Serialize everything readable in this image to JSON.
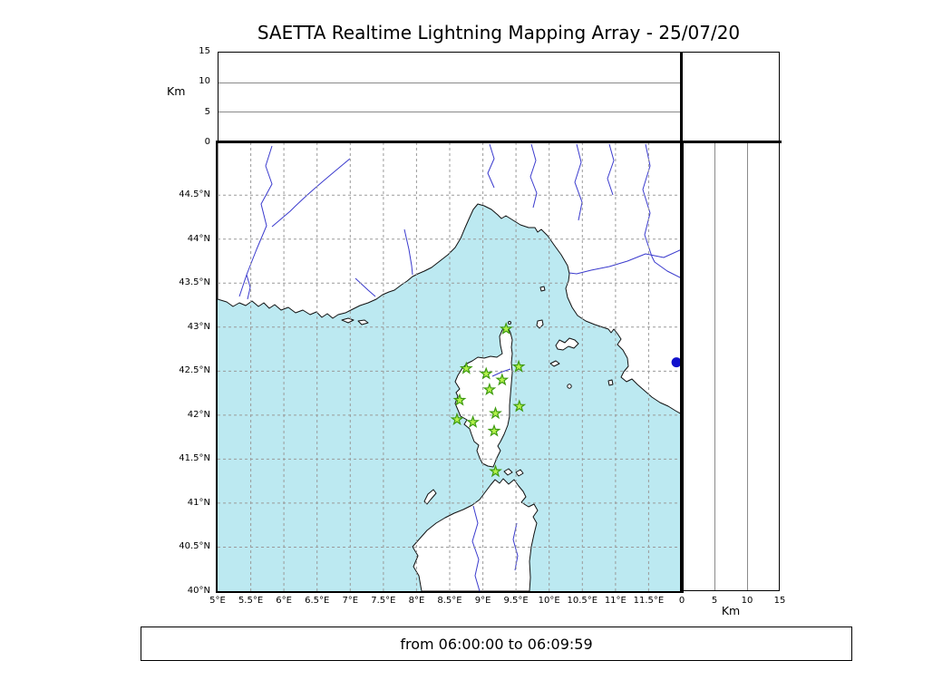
{
  "title": "SAETTA Realtime Lightning Mapping Array - 25/07/20",
  "status_bar": {
    "text": "from 06:00:00 to 06:09:59"
  },
  "colors": {
    "sea": "#bce9f1",
    "land": "#ffffff",
    "coastline": "#111111",
    "river": "#3a3acd",
    "grid": "#9a9a9a",
    "panel_grid": "#8a8a8a",
    "station_fill": "#b5f24c",
    "station_stroke": "#3e9b10",
    "source_point": "#1111cc"
  },
  "altitude_axis": {
    "label": "Km",
    "max_km": 15,
    "ticks": [
      {
        "v": 0,
        "label": "0"
      },
      {
        "v": 5,
        "label": "5"
      },
      {
        "v": 10,
        "label": "10"
      },
      {
        "v": 15,
        "label": "15"
      }
    ],
    "gridlines_km": [
      5,
      10
    ]
  },
  "map_axes": {
    "lon_ticks": [
      {
        "v": 5,
        "label": "5°E"
      },
      {
        "v": 5.5,
        "label": "5.5°E"
      },
      {
        "v": 6,
        "label": "6°E"
      },
      {
        "v": 6.5,
        "label": "6.5°E"
      },
      {
        "v": 7,
        "label": "7°E"
      },
      {
        "v": 7.5,
        "label": "7.5°E"
      },
      {
        "v": 8,
        "label": "8°E"
      },
      {
        "v": 8.5,
        "label": "8.5°E"
      },
      {
        "v": 9,
        "label": "9°E"
      },
      {
        "v": 9.5,
        "label": "9.5°E"
      },
      {
        "v": 10,
        "label": "10°E"
      },
      {
        "v": 10.5,
        "label": "10.5°E"
      },
      {
        "v": 11,
        "label": "11°E"
      },
      {
        "v": 11.5,
        "label": "11.5°E"
      }
    ],
    "lat_ticks": [
      {
        "v": 44.5,
        "label": "44.5°N"
      },
      {
        "v": 44,
        "label": "44°N"
      },
      {
        "v": 43.5,
        "label": "43.5°N"
      },
      {
        "v": 43,
        "label": "43°N"
      },
      {
        "v": 42.5,
        "label": "42.5°N"
      },
      {
        "v": 42,
        "label": "42°N"
      },
      {
        "v": 41.5,
        "label": "41.5°N"
      },
      {
        "v": 41,
        "label": "41°N"
      },
      {
        "v": 40.5,
        "label": "40.5°N"
      },
      {
        "v": 40,
        "label": "40°N"
      }
    ],
    "grid_lons": [
      5.5,
      6,
      6.5,
      7,
      7.5,
      8,
      8.5,
      9,
      9.5,
      10,
      10.5,
      11,
      11.5
    ],
    "grid_lats": [
      40.5,
      41,
      41.5,
      42,
      42.5,
      43,
      43.5,
      44,
      44.5
    ]
  },
  "chart_data": {
    "type": "map",
    "title": "SAETTA Realtime Lightning Mapping Array - 25/07/20",
    "time_window": {
      "from": "06:00:00",
      "to": "06:09:59"
    },
    "extent": {
      "lon_range": [
        5,
        12
      ],
      "lat_range": [
        40,
        45.1
      ]
    },
    "altitude_panels": {
      "unit": "Km",
      "range": [
        0,
        15
      ],
      "ticks": [
        0,
        5,
        10,
        15
      ],
      "content": "empty - no lightning altitudes plotted"
    },
    "stations": [
      {
        "lon": 9.35,
        "lat": 42.98
      },
      {
        "lon": 8.75,
        "lat": 42.53
      },
      {
        "lon": 9.05,
        "lat": 42.47
      },
      {
        "lon": 9.54,
        "lat": 42.55
      },
      {
        "lon": 9.29,
        "lat": 42.4
      },
      {
        "lon": 9.1,
        "lat": 42.29
      },
      {
        "lon": 8.65,
        "lat": 42.17
      },
      {
        "lon": 9.55,
        "lat": 42.1
      },
      {
        "lon": 8.61,
        "lat": 41.95
      },
      {
        "lon": 8.85,
        "lat": 41.92
      },
      {
        "lon": 9.19,
        "lat": 42.02
      },
      {
        "lon": 9.17,
        "lat": 41.82
      },
      {
        "lon": 9.19,
        "lat": 41.36
      }
    ],
    "sources": [
      {
        "lon": 11.92,
        "lat": 42.6
      }
    ]
  }
}
